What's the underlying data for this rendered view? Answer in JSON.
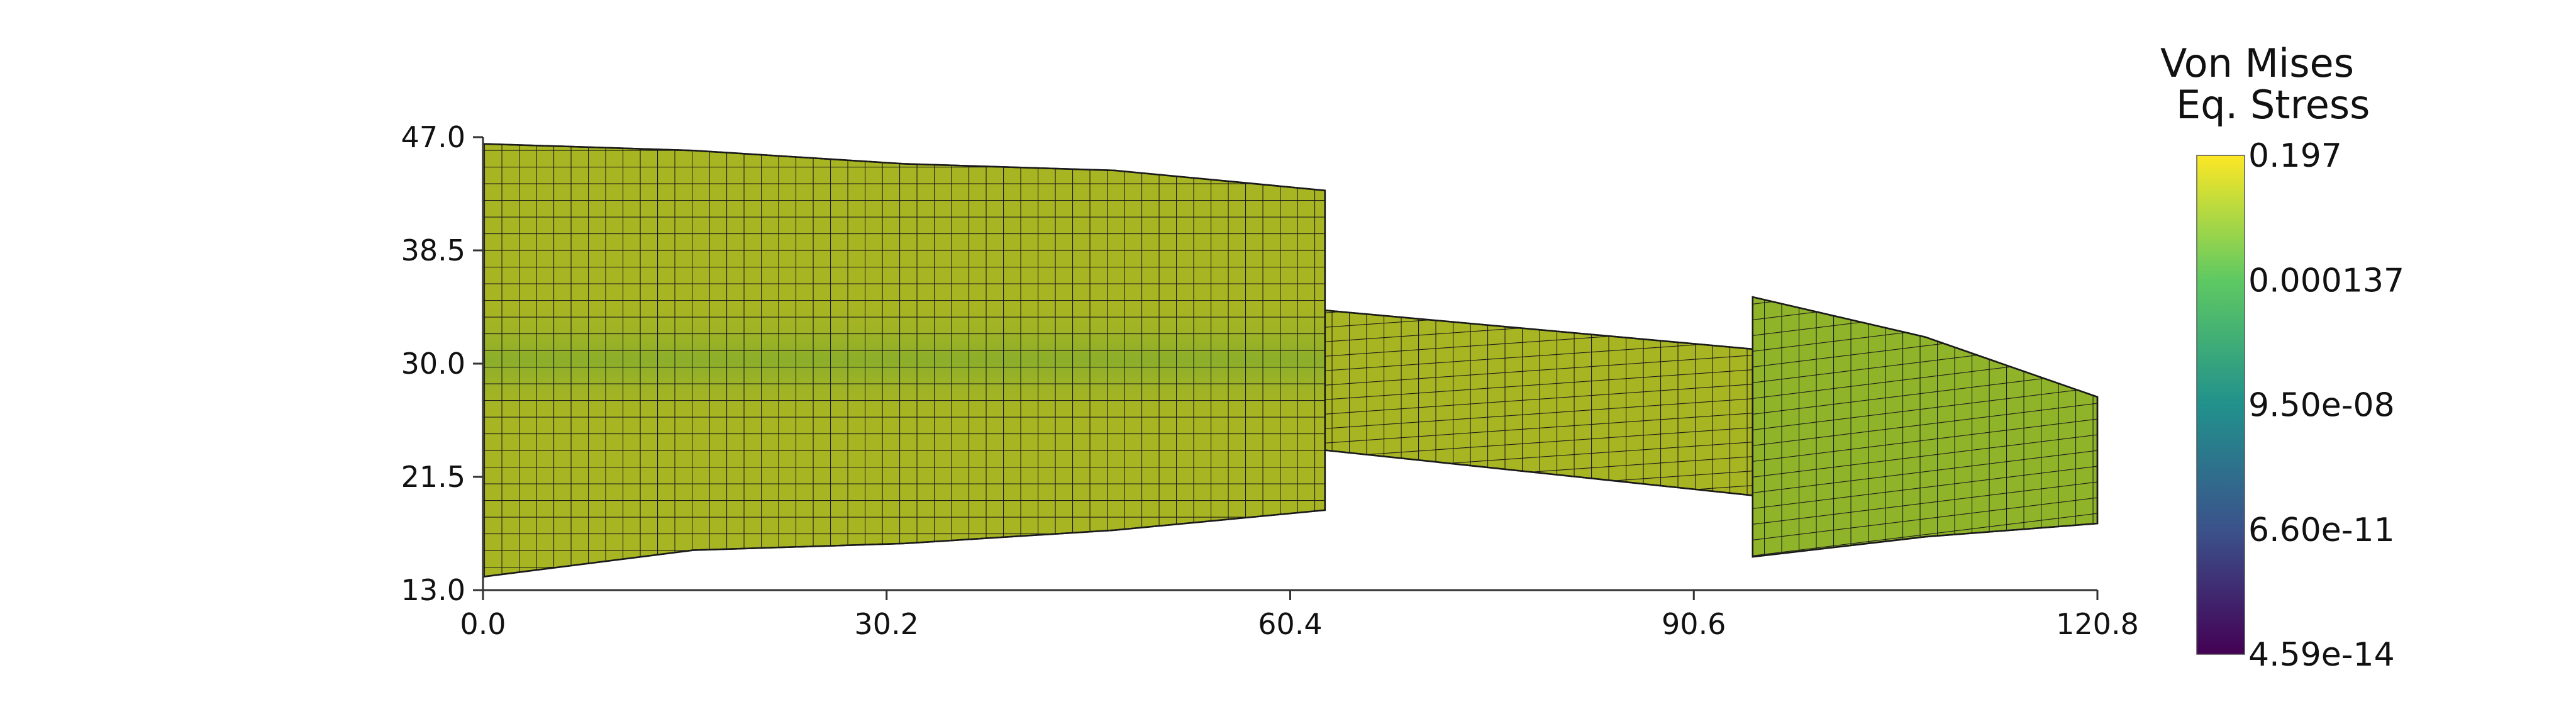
{
  "chart_data": {
    "type": "heatmap",
    "description_level": "mesh",
    "xlim": [
      0.0,
      120.8
    ],
    "ylim": [
      13.0,
      47.0
    ],
    "x_ticks": [
      "0.0",
      "30.2",
      "60.4",
      "90.6",
      "120.8"
    ],
    "y_ticks": [
      "47.0",
      "38.5",
      "30.0",
      "21.5",
      "13.0"
    ],
    "grid": false,
    "colorbar": {
      "title_line1": "Von Mises",
      "title_line2": "Eq. Stress",
      "labels": [
        "0.197",
        "0.000137",
        "9.50e-08",
        "6.60e-11",
        "4.59e-14"
      ],
      "scale": "log",
      "colormap": [
        "#fde725",
        "#5ec962",
        "#21918c",
        "#3b528b",
        "#440154"
      ],
      "placement": "right"
    },
    "mesh": {
      "fill_color": "#a8b522",
      "center_band_color": "#86ad2c",
      "knob_color": "#8fb42a",
      "edge_color": "#1a1a1a",
      "regions": [
        {
          "name": "left-block",
          "x": [
            0.0,
            63.0
          ],
          "y_bottom": [
            14.0,
            16.0,
            16.5,
            17.5,
            19.0
          ],
          "y_top": [
            46.5,
            46.0,
            45.0,
            44.5,
            43.0
          ],
          "shade": "center-band"
        },
        {
          "name": "beam",
          "x": [
            63.0,
            96.0
          ],
          "y_bottom": [
            23.5,
            20.0
          ],
          "y_top": [
            34.0,
            31.0
          ],
          "shade": "none"
        },
        {
          "name": "end-block",
          "x": [
            95.0,
            120.8
          ],
          "y_bottom": [
            15.5,
            17.0,
            18.0
          ],
          "y_top": [
            35.0,
            32.0,
            27.5
          ],
          "shade": "uniform"
        }
      ]
    }
  }
}
